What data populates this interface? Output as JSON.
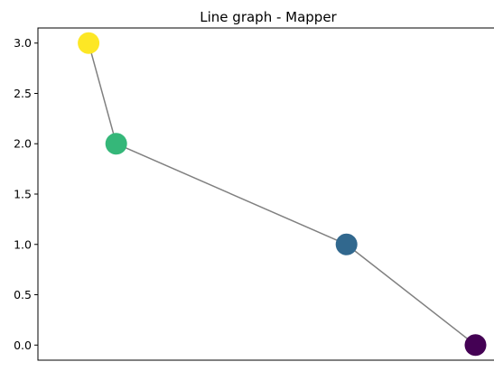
{
  "chart_data": {
    "type": "line",
    "title": "Line graph - Mapper",
    "xlabel": "",
    "ylabel": "",
    "x_ticks_visible": false,
    "ylim": [
      -0.15,
      3.15
    ],
    "y_ticks": [
      {
        "value": 0.0,
        "label": "0.0"
      },
      {
        "value": 0.5,
        "label": "0.5"
      },
      {
        "value": 1.0,
        "label": "1.0"
      },
      {
        "value": 1.5,
        "label": "1.5"
      },
      {
        "value": 2.0,
        "label": "2.0"
      },
      {
        "value": 2.5,
        "label": "2.5"
      },
      {
        "value": 3.0,
        "label": "3.0"
      }
    ],
    "edge_color": "#808080",
    "grid": false,
    "nodes": [
      {
        "id": "node-0",
        "x": 0.11,
        "y": 3.0,
        "color": "#fde725"
      },
      {
        "id": "node-1",
        "x": 0.17,
        "y": 2.0,
        "color": "#35b779"
      },
      {
        "id": "node-2",
        "x": 0.67,
        "y": 1.0,
        "color": "#31688e"
      },
      {
        "id": "node-3",
        "x": 0.95,
        "y": 0.0,
        "color": "#440154"
      }
    ],
    "edges": [
      [
        "node-0",
        "node-1"
      ],
      [
        "node-1",
        "node-2"
      ],
      [
        "node-2",
        "node-3"
      ]
    ]
  }
}
